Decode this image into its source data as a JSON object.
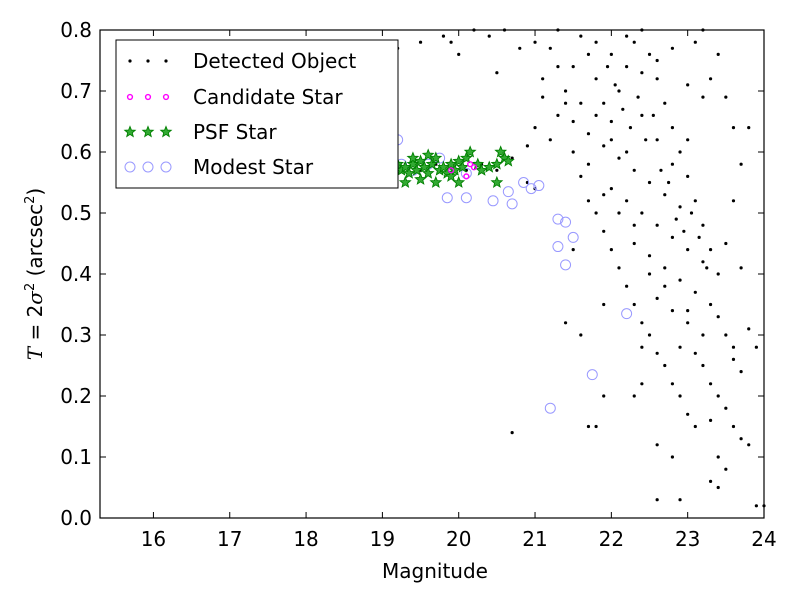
{
  "chart_data": {
    "type": "scatter",
    "title": "",
    "xlabel": "Magnitude",
    "ylabel_parts": {
      "var": "T",
      "eq": " = 2",
      "sigma": "σ",
      "sq": "2",
      "unit_open": " (arcsec",
      "unit_sq": "2",
      "unit_close": ")"
    },
    "xlim": [
      15.3,
      24.0
    ],
    "ylim": [
      0.0,
      0.8
    ],
    "xticks": [
      16,
      17,
      18,
      19,
      20,
      21,
      22,
      23,
      24
    ],
    "yticks": [
      0.0,
      0.1,
      0.2,
      0.3,
      0.4,
      0.5,
      0.6,
      0.7,
      0.8
    ],
    "xtick_labels": [
      "16",
      "17",
      "18",
      "19",
      "20",
      "21",
      "22",
      "23",
      "24"
    ],
    "ytick_labels": [
      "0.0",
      "0.1",
      "0.2",
      "0.3",
      "0.4",
      "0.5",
      "0.6",
      "0.7",
      "0.8"
    ],
    "legend": {
      "placement": "top-left",
      "entries": [
        {
          "label": "Detected Object",
          "marker": "dot",
          "color": "#000000"
        },
        {
          "label": "Candidate Star",
          "marker": "small-circle",
          "color": "#ff00ff"
        },
        {
          "label": "PSF Star",
          "marker": "star",
          "color": "#008000"
        },
        {
          "label": "Modest Star",
          "marker": "open-circle",
          "color": "#9999ff"
        }
      ]
    },
    "series": [
      {
        "name": "Detected Object",
        "points": [
          [
            19.3,
            0.58
          ],
          [
            19.5,
            0.57
          ],
          [
            19.7,
            0.58
          ],
          [
            19.9,
            0.56
          ],
          [
            20.1,
            0.57
          ],
          [
            20.3,
            0.58
          ],
          [
            20.5,
            0.57
          ],
          [
            20.7,
            0.59
          ],
          [
            20.9,
            0.55
          ],
          [
            21.0,
            0.54
          ],
          [
            19.9,
            0.78
          ],
          [
            20.0,
            0.76
          ],
          [
            19.8,
            0.79
          ],
          [
            19.5,
            0.78
          ],
          [
            19.2,
            0.77
          ],
          [
            20.4,
            0.79
          ],
          [
            20.6,
            0.8
          ],
          [
            20.7,
            0.14
          ],
          [
            21.4,
            0.32
          ],
          [
            21.5,
            0.44
          ],
          [
            21.7,
            0.15
          ],
          [
            21.8,
            0.15
          ],
          [
            21.9,
            0.2
          ],
          [
            21.9,
            0.35
          ],
          [
            21.6,
            0.3
          ],
          [
            22.6,
            0.12
          ],
          [
            22.8,
            0.1
          ],
          [
            22.6,
            0.03
          ],
          [
            22.9,
            0.03
          ],
          [
            23.9,
            0.02
          ],
          [
            24.0,
            0.02
          ],
          [
            23.3,
            0.22
          ],
          [
            23.4,
            0.2
          ],
          [
            23.5,
            0.18
          ],
          [
            23.6,
            0.15
          ],
          [
            23.7,
            0.13
          ],
          [
            23.8,
            0.12
          ],
          [
            23.4,
            0.1
          ],
          [
            23.5,
            0.08
          ],
          [
            23.4,
            0.05
          ],
          [
            23.3,
            0.06
          ],
          [
            23.7,
            0.24
          ],
          [
            23.6,
            0.28
          ],
          [
            23.8,
            0.31
          ],
          [
            23.3,
            0.16
          ],
          [
            23.2,
            0.25
          ],
          [
            21.2,
            0.62
          ],
          [
            21.3,
            0.66
          ],
          [
            21.4,
            0.7
          ],
          [
            21.5,
            0.74
          ],
          [
            21.1,
            0.72
          ],
          [
            21.0,
            0.78
          ],
          [
            21.3,
            0.8
          ],
          [
            21.6,
            0.79
          ],
          [
            21.7,
            0.76
          ],
          [
            21.8,
            0.72
          ],
          [
            21.9,
            0.68
          ],
          [
            22.0,
            0.65
          ],
          [
            22.1,
            0.7
          ],
          [
            22.2,
            0.74
          ],
          [
            22.3,
            0.78
          ],
          [
            22.4,
            0.8
          ],
          [
            22.5,
            0.76
          ],
          [
            22.6,
            0.72
          ],
          [
            22.7,
            0.68
          ],
          [
            22.8,
            0.64
          ],
          [
            22.9,
            0.6
          ],
          [
            23.0,
            0.56
          ],
          [
            23.1,
            0.52
          ],
          [
            23.2,
            0.48
          ],
          [
            23.3,
            0.44
          ],
          [
            23.4,
            0.4
          ],
          [
            23.5,
            0.45
          ],
          [
            23.6,
            0.52
          ],
          [
            23.7,
            0.58
          ],
          [
            23.8,
            0.64
          ],
          [
            23.5,
            0.69
          ],
          [
            23.3,
            0.72
          ],
          [
            23.1,
            0.78
          ],
          [
            21.6,
            0.56
          ],
          [
            21.7,
            0.52
          ],
          [
            21.8,
            0.5
          ],
          [
            21.9,
            0.47
          ],
          [
            22.0,
            0.44
          ],
          [
            22.1,
            0.41
          ],
          [
            22.2,
            0.38
          ],
          [
            22.3,
            0.35
          ],
          [
            22.4,
            0.32
          ],
          [
            22.5,
            0.3
          ],
          [
            22.6,
            0.27
          ],
          [
            22.7,
            0.25
          ],
          [
            22.8,
            0.22
          ],
          [
            22.9,
            0.2
          ],
          [
            23.0,
            0.17
          ],
          [
            23.1,
            0.15
          ],
          [
            21.5,
            0.6
          ],
          [
            21.7,
            0.63
          ],
          [
            21.9,
            0.61
          ],
          [
            22.1,
            0.59
          ],
          [
            22.3,
            0.57
          ],
          [
            22.5,
            0.55
          ],
          [
            22.7,
            0.53
          ],
          [
            22.9,
            0.51
          ],
          [
            22.0,
            0.54
          ],
          [
            22.2,
            0.52
          ],
          [
            22.4,
            0.5
          ],
          [
            22.6,
            0.48
          ],
          [
            22.8,
            0.46
          ],
          [
            23.0,
            0.44
          ],
          [
            23.2,
            0.42
          ],
          [
            21.8,
            0.78
          ],
          [
            22.0,
            0.76
          ],
          [
            22.2,
            0.79
          ],
          [
            22.4,
            0.73
          ],
          [
            22.6,
            0.75
          ],
          [
            22.8,
            0.77
          ],
          [
            23.0,
            0.71
          ],
          [
            23.2,
            0.69
          ],
          [
            21.6,
            0.68
          ],
          [
            21.8,
            0.66
          ],
          [
            22.0,
            0.62
          ],
          [
            22.2,
            0.6
          ],
          [
            22.4,
            0.66
          ],
          [
            22.6,
            0.62
          ],
          [
            22.8,
            0.58
          ],
          [
            23.0,
            0.62
          ],
          [
            22.3,
            0.45
          ],
          [
            22.5,
            0.43
          ],
          [
            22.7,
            0.41
          ],
          [
            22.9,
            0.39
          ],
          [
            23.1,
            0.37
          ],
          [
            23.3,
            0.35
          ],
          [
            22.4,
            0.28
          ],
          [
            22.6,
            0.36
          ],
          [
            22.8,
            0.34
          ],
          [
            23.0,
            0.32
          ],
          [
            23.2,
            0.3
          ],
          [
            22.7,
            0.38
          ],
          [
            22.5,
            0.4
          ],
          [
            22.3,
            0.48
          ],
          [
            22.1,
            0.5
          ],
          [
            21.9,
            0.53
          ],
          [
            23.4,
            0.33
          ],
          [
            23.5,
            0.3
          ],
          [
            23.6,
            0.26
          ],
          [
            22.9,
            0.28
          ],
          [
            23.1,
            0.27
          ],
          [
            23.0,
            0.34
          ],
          [
            22.4,
            0.22
          ],
          [
            22.3,
            0.2
          ],
          [
            21.7,
            0.58
          ],
          [
            21.5,
            0.65
          ],
          [
            21.4,
            0.68
          ],
          [
            21.3,
            0.74
          ],
          [
            21.2,
            0.77
          ],
          [
            21.1,
            0.69
          ],
          [
            21.0,
            0.64
          ],
          [
            20.9,
            0.61
          ],
          [
            22.15,
            0.67
          ],
          [
            22.25,
            0.64
          ],
          [
            22.35,
            0.69
          ],
          [
            22.45,
            0.62
          ],
          [
            22.55,
            0.66
          ],
          [
            22.05,
            0.71
          ],
          [
            21.95,
            0.74
          ],
          [
            22.65,
            0.57
          ],
          [
            22.75,
            0.55
          ],
          [
            22.85,
            0.49
          ],
          [
            22.95,
            0.47
          ],
          [
            23.05,
            0.5
          ],
          [
            23.15,
            0.46
          ],
          [
            23.25,
            0.41
          ],
          [
            23.9,
            0.28
          ],
          [
            23.7,
            0.41
          ],
          [
            23.6,
            0.64
          ],
          [
            23.4,
            0.76
          ],
          [
            23.2,
            0.8
          ],
          [
            20.2,
            0.8
          ],
          [
            20.8,
            0.77
          ],
          [
            20.5,
            0.73
          ]
        ]
      },
      {
        "name": "Candidate Star",
        "points": [
          [
            20.1,
            0.56
          ],
          [
            20.15,
            0.58
          ],
          [
            19.9,
            0.57
          ],
          [
            20.2,
            0.575
          ]
        ]
      },
      {
        "name": "PSF Star",
        "points": [
          [
            19.2,
            0.58
          ],
          [
            19.25,
            0.57
          ],
          [
            19.3,
            0.575
          ],
          [
            19.35,
            0.565
          ],
          [
            19.4,
            0.58
          ],
          [
            19.45,
            0.57
          ],
          [
            19.5,
            0.585
          ],
          [
            19.55,
            0.575
          ],
          [
            19.6,
            0.565
          ],
          [
            19.65,
            0.58
          ],
          [
            19.7,
            0.59
          ],
          [
            19.75,
            0.57
          ],
          [
            19.8,
            0.575
          ],
          [
            19.85,
            0.565
          ],
          [
            19.9,
            0.58
          ],
          [
            19.95,
            0.57
          ],
          [
            20.0,
            0.585
          ],
          [
            20.05,
            0.575
          ],
          [
            20.1,
            0.59
          ],
          [
            20.15,
            0.6
          ],
          [
            20.25,
            0.58
          ],
          [
            20.3,
            0.57
          ],
          [
            20.4,
            0.575
          ],
          [
            20.5,
            0.58
          ],
          [
            20.55,
            0.6
          ],
          [
            20.6,
            0.59
          ],
          [
            20.65,
            0.585
          ],
          [
            19.3,
            0.55
          ],
          [
            19.5,
            0.555
          ],
          [
            19.7,
            0.55
          ],
          [
            19.9,
            0.56
          ],
          [
            20.0,
            0.55
          ],
          [
            20.5,
            0.55
          ],
          [
            19.4,
            0.59
          ],
          [
            19.6,
            0.595
          ]
        ]
      },
      {
        "name": "Modest Star",
        "points": [
          [
            19.2,
            0.62
          ],
          [
            19.25,
            0.58
          ],
          [
            19.4,
            0.57
          ],
          [
            19.6,
            0.58
          ],
          [
            19.75,
            0.59
          ],
          [
            19.85,
            0.525
          ],
          [
            20.1,
            0.525
          ],
          [
            20.45,
            0.52
          ],
          [
            20.7,
            0.515
          ],
          [
            20.65,
            0.535
          ],
          [
            20.85,
            0.55
          ],
          [
            20.95,
            0.54
          ],
          [
            21.05,
            0.545
          ],
          [
            20.1,
            0.565
          ],
          [
            21.3,
            0.49
          ],
          [
            21.4,
            0.485
          ],
          [
            21.5,
            0.46
          ],
          [
            21.3,
            0.445
          ],
          [
            21.4,
            0.415
          ],
          [
            22.2,
            0.335
          ],
          [
            21.75,
            0.235
          ],
          [
            21.2,
            0.18
          ]
        ]
      }
    ]
  }
}
